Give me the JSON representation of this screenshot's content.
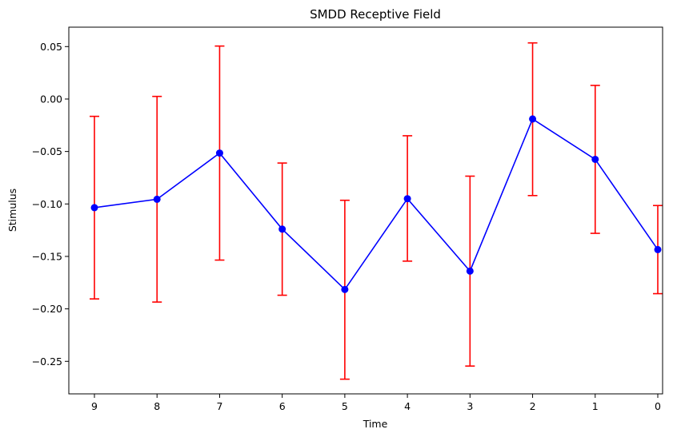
{
  "chart_data": {
    "type": "line",
    "title": "SMDD Receptive Field",
    "xlabel": "Time",
    "ylabel": "Stimulus",
    "categories": [
      "9",
      "8",
      "7",
      "6",
      "5",
      "4",
      "3",
      "2",
      "1",
      "0"
    ],
    "series": [
      {
        "values": [
          -0.1035,
          -0.0955,
          -0.0515,
          -0.124,
          -0.1815,
          -0.095,
          -0.164,
          -0.019,
          -0.0575,
          -0.1435
        ],
        "err_low": [
          -0.1905,
          -0.1935,
          -0.1535,
          -0.187,
          -0.267,
          -0.1545,
          -0.2545,
          -0.092,
          -0.128,
          -0.1855
        ],
        "err_high": [
          -0.0165,
          0.0025,
          0.0505,
          -0.061,
          -0.0965,
          -0.035,
          -0.0735,
          0.0535,
          0.013,
          -0.1015
        ],
        "color": "#0000ff",
        "error_color": "#ff0000"
      }
    ],
    "yticks": [
      "0.05",
      "0.00",
      "−0.05",
      "−0.10",
      "−0.15",
      "−0.20",
      "−0.25"
    ],
    "ytick_values": [
      0.05,
      0.0,
      -0.05,
      -0.1,
      -0.15,
      -0.2,
      -0.25
    ],
    "ylim": [
      -0.281,
      0.0685
    ],
    "grid": false,
    "legend": "none"
  }
}
